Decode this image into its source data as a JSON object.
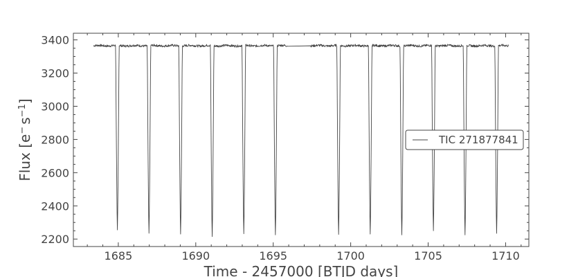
{
  "chart_data": {
    "type": "line",
    "xlabel": "Time - 2457000 [BTJD days]",
    "ylabel_main": "Flux [e",
    "ylabel_sup1": "−",
    "ylabel_mid": "s",
    "ylabel_sup2": "−1",
    "ylabel_end": "]",
    "xlim": [
      1682.1,
      1711.5
    ],
    "ylim": [
      2155,
      3440
    ],
    "x_ticks": [
      1685,
      1690,
      1695,
      1700,
      1705,
      1710
    ],
    "x_tick_labels": [
      "1685",
      "1690",
      "1695",
      "1700",
      "1705",
      "1710"
    ],
    "y_ticks": [
      2200,
      2400,
      2600,
      2800,
      3000,
      3200,
      3400
    ],
    "y_tick_labels": [
      "2200",
      "2400",
      "2600",
      "2800",
      "3000",
      "3200",
      "3400"
    ],
    "x_minor_step": 1,
    "y_minor_step": 50,
    "grid": false,
    "legend_position": "center-right",
    "series": [
      {
        "name": "TIC 271877841",
        "color": "#444444",
        "baseline": 3365,
        "x_start": 1683.4,
        "x_end": 1710.2,
        "gaps": [
          [
            1695.9,
            1697.4
          ]
        ],
        "eclipses": [
          {
            "center": 1684.94,
            "depth": 2255
          },
          {
            "center": 1686.98,
            "depth": 2235
          },
          {
            "center": 1689.02,
            "depth": 2230
          },
          {
            "center": 1691.06,
            "depth": 2215
          },
          {
            "center": 1693.1,
            "depth": 2235
          },
          {
            "center": 1695.14,
            "depth": 2228
          },
          {
            "center": 1699.22,
            "depth": 2228
          },
          {
            "center": 1701.26,
            "depth": 2230
          },
          {
            "center": 1703.3,
            "depth": 2225
          },
          {
            "center": 1705.34,
            "depth": 2250
          },
          {
            "center": 1707.38,
            "depth": 2225
          },
          {
            "center": 1709.42,
            "depth": 2235
          }
        ]
      }
    ]
  }
}
